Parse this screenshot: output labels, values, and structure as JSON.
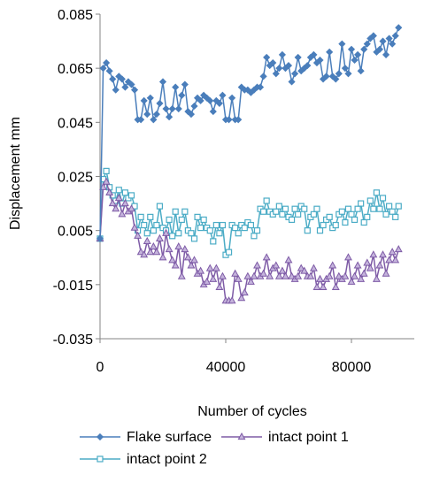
{
  "chart_data": {
    "type": "line",
    "xlabel": "Number of cycles",
    "ylabel": "Displacement mm",
    "xlim": [
      0,
      100000
    ],
    "ylim": [
      -0.035,
      0.085
    ],
    "x_ticks": [
      "0",
      "40000",
      "80000"
    ],
    "x_tick_values": [
      0,
      40000,
      80000
    ],
    "y_ticks": [
      "0.085",
      "0.065",
      "0.045",
      "0.025",
      "0.005",
      "-0.015",
      "-0.035"
    ],
    "y_tick_values": [
      0.085,
      0.065,
      0.045,
      0.025,
      0.005,
      -0.015,
      -0.035
    ],
    "grid": false,
    "legend_position": "bottom",
    "series": [
      {
        "name": "Flake surface",
        "color": "#4a7ebb",
        "marker": "diamond",
        "x": [
          0,
          1000,
          2000,
          3000,
          4000,
          5000,
          6000,
          7000,
          8000,
          9000,
          10000,
          11000,
          12000,
          13000,
          14000,
          15000,
          16000,
          17000,
          18000,
          19000,
          20000,
          21000,
          22000,
          23000,
          24000,
          25000,
          26000,
          27000,
          28000,
          29000,
          30000,
          31000,
          32000,
          33000,
          34000,
          35000,
          36000,
          37000,
          38000,
          39000,
          40000,
          41000,
          42000,
          43000,
          44000,
          45000,
          46000,
          47000,
          48000,
          49000,
          50000,
          51000,
          52000,
          53000,
          54000,
          55000,
          56000,
          57000,
          58000,
          59000,
          60000,
          61000,
          62000,
          63000,
          64000,
          65000,
          66000,
          67000,
          68000,
          69000,
          70000,
          71000,
          72000,
          73000,
          74000,
          75000,
          76000,
          77000,
          78000,
          79000,
          80000,
          81000,
          82000,
          83000,
          84000,
          85000,
          86000,
          87000,
          88000,
          89000,
          90000,
          91000,
          92000,
          93000,
          94000,
          95000
        ],
        "values": [
          0.002,
          0.065,
          0.067,
          0.064,
          0.061,
          0.057,
          0.062,
          0.061,
          0.058,
          0.06,
          0.059,
          0.057,
          0.046,
          0.046,
          0.053,
          0.048,
          0.054,
          0.046,
          0.048,
          0.052,
          0.06,
          0.05,
          0.047,
          0.05,
          0.058,
          0.05,
          0.055,
          0.059,
          0.049,
          0.048,
          0.051,
          0.054,
          0.053,
          0.055,
          0.054,
          0.053,
          0.049,
          0.053,
          0.052,
          0.055,
          0.046,
          0.046,
          0.054,
          0.046,
          0.046,
          0.058,
          0.057,
          0.057,
          0.056,
          0.057,
          0.058,
          0.058,
          0.062,
          0.069,
          0.066,
          0.067,
          0.063,
          0.065,
          0.07,
          0.065,
          0.066,
          0.06,
          0.063,
          0.069,
          0.064,
          0.065,
          0.066,
          0.069,
          0.07,
          0.067,
          0.068,
          0.061,
          0.062,
          0.071,
          0.062,
          0.061,
          0.063,
          0.074,
          0.065,
          0.063,
          0.072,
          0.068,
          0.07,
          0.064,
          0.072,
          0.074,
          0.076,
          0.077,
          0.071,
          0.072,
          0.075,
          0.07,
          0.076,
          0.074,
          0.077,
          0.08
        ]
      },
      {
        "name": "intact point 1",
        "color": "#7e5ba6",
        "marker": "triangle",
        "x": [
          0,
          1000,
          2000,
          3000,
          4000,
          5000,
          6000,
          7000,
          8000,
          9000,
          10000,
          11000,
          12000,
          13000,
          14000,
          15000,
          16000,
          17000,
          18000,
          19000,
          20000,
          21000,
          22000,
          23000,
          24000,
          25000,
          26000,
          27000,
          28000,
          29000,
          30000,
          31000,
          32000,
          33000,
          34000,
          35000,
          36000,
          37000,
          38000,
          39000,
          40000,
          41000,
          42000,
          43000,
          44000,
          45000,
          46000,
          47000,
          48000,
          49000,
          50000,
          51000,
          52000,
          53000,
          54000,
          55000,
          56000,
          57000,
          58000,
          59000,
          60000,
          61000,
          62000,
          63000,
          64000,
          65000,
          66000,
          67000,
          68000,
          69000,
          70000,
          71000,
          72000,
          73000,
          74000,
          75000,
          76000,
          77000,
          78000,
          79000,
          80000,
          81000,
          82000,
          83000,
          84000,
          85000,
          86000,
          87000,
          88000,
          89000,
          90000,
          91000,
          92000,
          93000,
          94000,
          95000
        ],
        "values": [
          0.002,
          0.021,
          0.023,
          0.019,
          0.015,
          0.013,
          0.017,
          0.011,
          0.015,
          0.012,
          0.013,
          0.006,
          0.003,
          -0.003,
          -0.004,
          0.001,
          -0.003,
          -0.001,
          -0.003,
          0.002,
          -0.005,
          0.004,
          -0.002,
          -0.006,
          -0.008,
          -0.001,
          -0.012,
          -0.002,
          -0.005,
          -0.008,
          -0.006,
          -0.011,
          -0.01,
          -0.015,
          -0.014,
          -0.009,
          -0.013,
          -0.009,
          -0.016,
          -0.012,
          -0.021,
          -0.021,
          -0.021,
          -0.011,
          -0.013,
          -0.02,
          -0.018,
          -0.012,
          -0.014,
          -0.012,
          -0.008,
          -0.012,
          -0.011,
          -0.005,
          -0.012,
          -0.009,
          -0.008,
          -0.012,
          -0.01,
          -0.012,
          -0.006,
          -0.012,
          -0.013,
          -0.012,
          -0.009,
          -0.01,
          -0.012,
          -0.012,
          -0.009,
          -0.016,
          -0.013,
          -0.016,
          -0.013,
          -0.012,
          -0.008,
          -0.016,
          -0.012,
          -0.013,
          -0.012,
          -0.005,
          -0.014,
          -0.012,
          -0.008,
          -0.013,
          -0.011,
          -0.007,
          -0.009,
          -0.004,
          -0.013,
          -0.008,
          -0.004,
          -0.011,
          -0.006,
          -0.003,
          -0.006,
          -0.002
        ]
      },
      {
        "name": "intact point 2",
        "color": "#4bacc6",
        "marker": "square",
        "x": [
          0,
          1000,
          2000,
          3000,
          4000,
          5000,
          6000,
          7000,
          8000,
          9000,
          10000,
          11000,
          12000,
          13000,
          14000,
          15000,
          16000,
          17000,
          18000,
          19000,
          20000,
          21000,
          22000,
          23000,
          24000,
          25000,
          26000,
          27000,
          28000,
          29000,
          30000,
          31000,
          32000,
          33000,
          34000,
          35000,
          36000,
          37000,
          38000,
          39000,
          40000,
          41000,
          42000,
          43000,
          44000,
          45000,
          46000,
          47000,
          48000,
          49000,
          50000,
          51000,
          52000,
          53000,
          54000,
          55000,
          56000,
          57000,
          58000,
          59000,
          60000,
          61000,
          62000,
          63000,
          64000,
          65000,
          66000,
          67000,
          68000,
          69000,
          70000,
          71000,
          72000,
          73000,
          74000,
          75000,
          76000,
          77000,
          78000,
          79000,
          80000,
          81000,
          82000,
          83000,
          84000,
          85000,
          86000,
          87000,
          88000,
          89000,
          90000,
          91000,
          92000,
          93000,
          94000,
          95000
        ],
        "values": [
          0.002,
          0.024,
          0.027,
          0.021,
          0.018,
          0.016,
          0.02,
          0.015,
          0.019,
          0.017,
          0.018,
          0.014,
          0.005,
          0.01,
          0.007,
          0.004,
          0.01,
          0.005,
          0.007,
          0.014,
          0.006,
          0.005,
          0.009,
          0.003,
          0.012,
          0.004,
          0.009,
          0.012,
          0.005,
          0.004,
          0.002,
          0.01,
          0.006,
          0.009,
          0.006,
          0.005,
          0.001,
          0.007,
          0.004,
          0.007,
          -0.004,
          -0.003,
          0.007,
          0.006,
          0.004,
          0.007,
          0.006,
          0.008,
          0.007,
          0.003,
          0.005,
          0.013,
          0.012,
          0.016,
          0.012,
          0.011,
          0.012,
          0.014,
          0.011,
          0.013,
          0.01,
          0.009,
          0.013,
          0.011,
          0.014,
          0.013,
          0.005,
          0.01,
          0.011,
          0.013,
          0.005,
          0.007,
          0.009,
          0.01,
          0.006,
          0.007,
          0.011,
          0.012,
          0.008,
          0.013,
          0.011,
          0.009,
          0.013,
          0.015,
          0.008,
          0.01,
          0.016,
          0.013,
          0.019,
          0.013,
          0.017,
          0.011,
          0.014,
          0.012,
          0.01,
          0.014
        ]
      }
    ]
  }
}
